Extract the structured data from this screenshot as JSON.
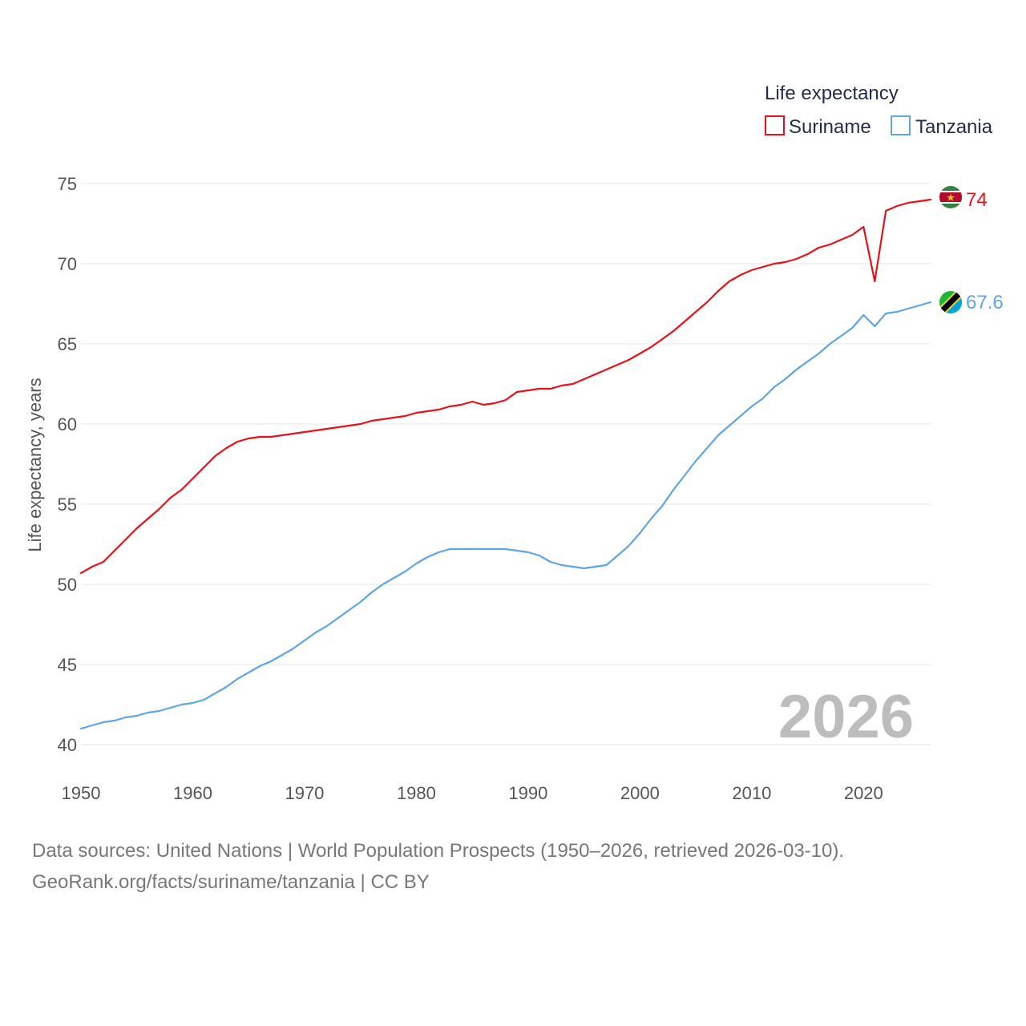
{
  "legend": {
    "title": "Life expectancy",
    "items": [
      {
        "label": "Suriname",
        "color": "#e8101a"
      },
      {
        "label": "Tanzania",
        "color": "#5ea4e6"
      }
    ]
  },
  "chart_data": {
    "type": "line",
    "title": "Life expectancy",
    "xlabel": "",
    "ylabel": "Life expectancy, years",
    "xlim": [
      1950,
      2026
    ],
    "ylim": [
      40,
      75
    ],
    "x_ticks": [
      1950,
      1960,
      1970,
      1980,
      1990,
      2000,
      2010,
      2020
    ],
    "y_ticks": [
      40,
      45,
      50,
      55,
      60,
      65,
      70,
      75
    ],
    "grid": true,
    "legend_position": "top-right",
    "current_year": "2026",
    "x": [
      1950,
      1951,
      1952,
      1953,
      1954,
      1955,
      1956,
      1957,
      1958,
      1959,
      1960,
      1961,
      1962,
      1963,
      1964,
      1965,
      1966,
      1967,
      1968,
      1969,
      1970,
      1971,
      1972,
      1973,
      1974,
      1975,
      1976,
      1977,
      1978,
      1979,
      1980,
      1981,
      1982,
      1983,
      1984,
      1985,
      1986,
      1987,
      1988,
      1989,
      1990,
      1991,
      1992,
      1993,
      1994,
      1995,
      1996,
      1997,
      1998,
      1999,
      2000,
      2001,
      2002,
      2003,
      2004,
      2005,
      2006,
      2007,
      2008,
      2009,
      2010,
      2011,
      2012,
      2013,
      2014,
      2015,
      2016,
      2017,
      2018,
      2019,
      2020,
      2021,
      2022,
      2023,
      2024,
      2025,
      2026
    ],
    "series": [
      {
        "name": "Suriname",
        "color": "#e8101a",
        "end_label": "74",
        "values": [
          50.7,
          51.1,
          51.4,
          52.1,
          52.8,
          53.5,
          54.1,
          54.7,
          55.4,
          55.9,
          56.6,
          57.3,
          58.0,
          58.5,
          58.9,
          59.1,
          59.2,
          59.2,
          59.3,
          59.4,
          59.5,
          59.6,
          59.7,
          59.8,
          59.9,
          60.0,
          60.2,
          60.3,
          60.4,
          60.5,
          60.7,
          60.8,
          60.9,
          61.1,
          61.2,
          61.4,
          61.2,
          61.3,
          61.5,
          62.0,
          62.1,
          62.2,
          62.2,
          62.4,
          62.5,
          62.8,
          63.1,
          63.4,
          63.7,
          64.0,
          64.4,
          64.8,
          65.3,
          65.8,
          66.4,
          67.0,
          67.6,
          68.3,
          68.9,
          69.3,
          69.6,
          69.8,
          70.0,
          70.1,
          70.3,
          70.6,
          71.0,
          71.2,
          71.5,
          71.8,
          72.3,
          68.9,
          73.3,
          73.6,
          73.8,
          73.9,
          74.0
        ]
      },
      {
        "name": "Tanzania",
        "color": "#5ea4e6",
        "end_label": "67.6",
        "values": [
          41.0,
          41.2,
          41.4,
          41.5,
          41.7,
          41.8,
          42.0,
          42.1,
          42.3,
          42.5,
          42.6,
          42.8,
          43.2,
          43.6,
          44.1,
          44.5,
          44.9,
          45.2,
          45.6,
          46.0,
          46.5,
          47.0,
          47.4,
          47.9,
          48.4,
          48.9,
          49.5,
          50.0,
          50.4,
          50.8,
          51.3,
          51.7,
          52.0,
          52.2,
          52.2,
          52.2,
          52.2,
          52.2,
          52.2,
          52.1,
          52.0,
          51.8,
          51.4,
          51.2,
          51.1,
          51.0,
          51.1,
          51.2,
          51.8,
          52.4,
          53.2,
          54.1,
          54.9,
          55.9,
          56.8,
          57.7,
          58.5,
          59.3,
          59.9,
          60.5,
          61.1,
          61.6,
          62.3,
          62.8,
          63.4,
          63.9,
          64.4,
          65.0,
          65.5,
          66.0,
          66.8,
          66.1,
          66.9,
          67.0,
          67.2,
          67.4,
          67.6
        ]
      }
    ]
  },
  "footer": {
    "sources": "Data sources: United Nations | World Population Prospects (1950–2026, retrieved 2026-03-10).",
    "url": "GeoRank.org/facts/suriname/tanzania | CC BY"
  }
}
